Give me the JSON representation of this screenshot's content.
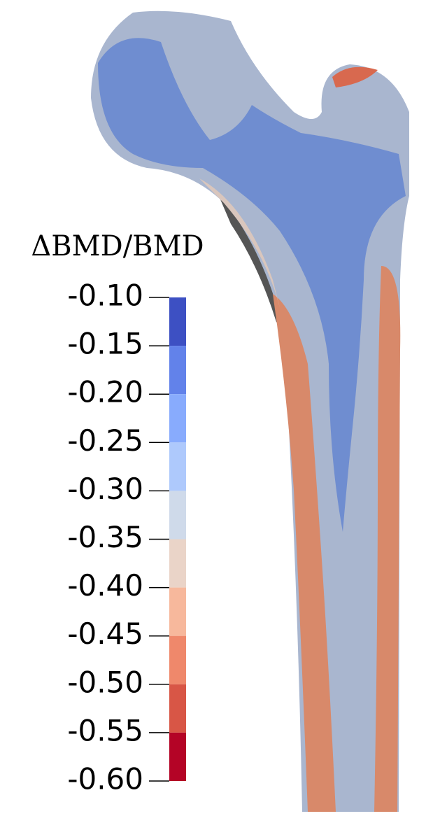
{
  "chart_data": {
    "type": "colorbar",
    "title": "ΔBMD/BMD",
    "clim": [
      -0.6,
      -0.1
    ],
    "cticks": [
      {
        "value": -0.1,
        "label": "-0.10"
      },
      {
        "value": -0.15,
        "label": "-0.15"
      },
      {
        "value": -0.2,
        "label": "-0.20"
      },
      {
        "value": -0.25,
        "label": "-0.25"
      },
      {
        "value": -0.3,
        "label": "-0.30"
      },
      {
        "value": -0.35,
        "label": "-0.35"
      },
      {
        "value": -0.4,
        "label": "-0.40"
      },
      {
        "value": -0.45,
        "label": "-0.45"
      },
      {
        "value": -0.5,
        "label": "-0.50"
      },
      {
        "value": -0.55,
        "label": "-0.55"
      },
      {
        "value": -0.6,
        "label": "-0.60"
      }
    ],
    "colors": [
      "#3d50c3",
      "#6282ea",
      "#88abfd",
      "#aec9fc",
      "#cfdaea",
      "#ead4c8",
      "#f7b89c",
      "#ef886b",
      "#d85646",
      "#b40426"
    ]
  }
}
